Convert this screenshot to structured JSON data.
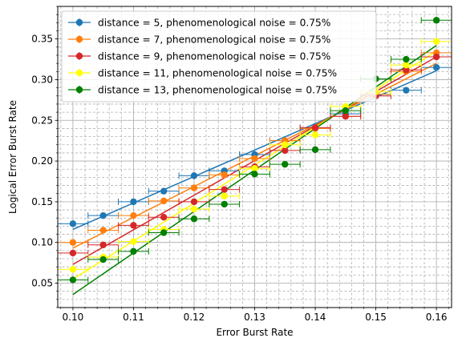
{
  "chart_data": {
    "type": "scatter",
    "xlabel": "Error Burst Rate",
    "ylabel": "Logical Error Burst Rate",
    "xlim": [
      0.0975,
      0.1625
    ],
    "ylim": [
      0.02,
      0.39
    ],
    "xticks": [
      0.1,
      0.11,
      0.12,
      0.13,
      0.14,
      0.15,
      0.16
    ],
    "xtick_labels": [
      "0.10",
      "0.11",
      "0.12",
      "0.13",
      "0.14",
      "0.15",
      "0.16"
    ],
    "yticks": [
      0.05,
      0.1,
      0.15,
      0.2,
      0.25,
      0.3,
      0.35
    ],
    "ytick_labels": [
      "0.05",
      "0.10",
      "0.15",
      "0.20",
      "0.25",
      "0.30",
      "0.35"
    ],
    "grid": true,
    "legend_position": "upper-left",
    "x": [
      0.1,
      0.105,
      0.11,
      0.115,
      0.12,
      0.125,
      0.13,
      0.135,
      0.14,
      0.145,
      0.15,
      0.155,
      0.16
    ],
    "series": [
      {
        "name": "distance = 5, phenomenological noise = 0.75%",
        "color": "#1f77b4",
        "values": [
          0.123,
          0.133,
          0.15,
          0.163,
          0.182,
          0.188,
          0.208,
          0.225,
          0.24,
          0.258,
          0.282,
          0.287,
          0.315
        ],
        "fit": [
          0.116,
          0.311
        ]
      },
      {
        "name": "distance = 7, phenomenological noise = 0.75%",
        "color": "#ff7f0e",
        "values": [
          0.1,
          0.115,
          0.133,
          0.151,
          0.167,
          0.183,
          0.203,
          0.225,
          0.24,
          0.255,
          0.282,
          0.31,
          0.333
        ],
        "fit": [
          0.093,
          0.32
        ]
      },
      {
        "name": "distance = 9, phenomenological noise = 0.75%",
        "color": "#d62728",
        "values": [
          0.087,
          0.097,
          0.121,
          0.131,
          0.15,
          0.165,
          0.193,
          0.213,
          0.241,
          0.255,
          0.28,
          0.312,
          0.328
        ],
        "fit": [
          0.073,
          0.328
        ]
      },
      {
        "name": "distance = 11, phenomenological noise = 0.75%",
        "color": "#ffff00",
        "values": [
          0.067,
          0.082,
          0.101,
          0.116,
          0.141,
          0.157,
          0.191,
          0.22,
          0.232,
          0.267,
          0.285,
          0.318,
          0.347
        ],
        "fit": [
          0.055,
          0.335
        ]
      },
      {
        "name": "distance = 13, phenomenological noise = 0.75%",
        "color": "#008000",
        "values": [
          0.054,
          0.079,
          0.089,
          0.112,
          0.129,
          0.147,
          0.184,
          0.196,
          0.214,
          0.262,
          0.301,
          0.325,
          0.373
        ],
        "fit": [
          0.036,
          0.342
        ]
      }
    ]
  }
}
